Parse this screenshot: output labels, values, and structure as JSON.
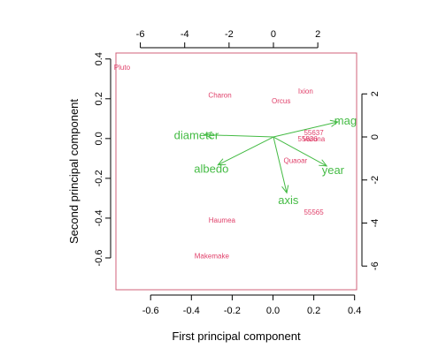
{
  "chart_data": {
    "type": "scatter",
    "subtype": "pca-biplot",
    "xlabel": "First principal component",
    "ylabel": "Second principal component",
    "xlim": [
      -0.77,
      0.41
    ],
    "ylim": [
      -0.76,
      0.43
    ],
    "xticks": [
      -0.6,
      -0.4,
      -0.2,
      0.0,
      0.2,
      0.4
    ],
    "xtick_labels": [
      "-0.6",
      "-0.4",
      "-0.2",
      "0.0",
      "0.2",
      "0.4"
    ],
    "yticks": [
      -0.6,
      -0.4,
      -0.2,
      0.0,
      0.2,
      0.4
    ],
    "ytick_labels": [
      "-0.6",
      "-0.4",
      "-0.2",
      "0.0",
      "0.2",
      "0.4"
    ],
    "top_axis": {
      "ticks": [
        -6,
        -4,
        -2,
        0,
        2
      ],
      "tick_labels": [
        "-6",
        "-4",
        "-2",
        "0",
        "2"
      ],
      "lim": [
        -7.1,
        3.75
      ]
    },
    "right_axis": {
      "ticks": [
        -6,
        -4,
        -2,
        0,
        2
      ],
      "tick_labels": [
        "-6",
        "-4",
        "-2",
        "0",
        "2"
      ],
      "lim": [
        -7.1,
        3.9
      ]
    },
    "observations": [
      {
        "label": "Pluto",
        "x": -0.74,
        "y": 0.36
      },
      {
        "label": "Charon",
        "x": -0.26,
        "y": 0.22
      },
      {
        "label": "Orcus",
        "x": 0.04,
        "y": 0.19
      },
      {
        "label": "Ixion",
        "x": 0.16,
        "y": 0.24
      },
      {
        "label": "55637",
        "x": 0.2,
        "y": 0.03
      },
      {
        "label": "55636",
        "x": 0.17,
        "y": 0.0
      },
      {
        "label": "Varuna",
        "x": 0.2,
        "y": 0.0
      },
      {
        "label": "Quaoar",
        "x": 0.11,
        "y": -0.11
      },
      {
        "label": "55565",
        "x": 0.2,
        "y": -0.37
      },
      {
        "label": "Haumea",
        "x": -0.25,
        "y": -0.41
      },
      {
        "label": "Makemake",
        "x": -0.3,
        "y": -0.59
      }
    ],
    "loadings": [
      {
        "label": "diameter",
        "x": -3.1,
        "y": 0.1
      },
      {
        "label": "albedo",
        "x": -2.5,
        "y": -1.3
      },
      {
        "label": "mag",
        "x": 2.9,
        "y": 0.7
      },
      {
        "label": "year",
        "x": 2.4,
        "y": -1.35
      },
      {
        "label": "axis",
        "x": 0.6,
        "y": -2.6
      }
    ],
    "colors": {
      "observations": "#e0406a",
      "loadings": "#44bb44",
      "frame": "#d0607a",
      "axes": "#000000"
    }
  }
}
